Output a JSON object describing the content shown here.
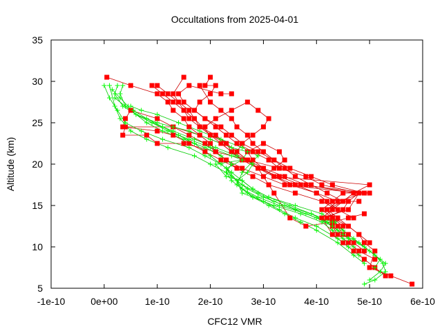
{
  "chart_data": {
    "type": "scatter",
    "title": "Occultations from 2025-04-01",
    "xlabel": "CFC12 VMR",
    "ylabel": "Altitude (km)",
    "xlim": [
      -1e-10,
      6e-10
    ],
    "ylim": [
      5,
      35
    ],
    "xticks": [
      -1e-10,
      0,
      1e-10,
      2e-10,
      3e-10,
      4e-10,
      5e-10,
      6e-10
    ],
    "xtick_labels": [
      "-1e-10",
      "0e+00",
      "1e-10",
      "2e-10",
      "3e-10",
      "4e-10",
      "5e-10",
      "6e-10"
    ],
    "yticks": [
      5,
      10,
      15,
      20,
      25,
      30,
      35
    ],
    "ytick_labels": [
      "5",
      "10",
      "15",
      "20",
      "25",
      "30",
      "35"
    ],
    "grid": false,
    "colors": {
      "series_a": "#ff0000",
      "series_b": "#00ff00",
      "line_a": "#cc0000",
      "line_b": "#00cc00"
    },
    "series": [
      {
        "marker": "square",
        "color": "#ff0000",
        "profiles": [
          {
            "x": [
              5.8e-10,
              5.4e-10,
              5e-10,
              5.1e-10,
              4.9e-10,
              4.8e-10,
              4.6e-10,
              4.3e-10,
              4.2e-10,
              4.4e-10,
              4e-10,
              3.6e-10,
              3.2e-10,
              2.9e-10,
              2.7e-10,
              2.4e-10,
              2.2e-10,
              2e-10,
              1.7e-10,
              1.5e-10,
              1.3e-10,
              1.1e-10,
              9e-11
            ],
            "y": [
              5.5,
              6.5,
              7.5,
              9.5,
              10.5,
              11.5,
              12.5,
              13.5,
              14.5,
              15.5,
              16.5,
              17.5,
              18.5,
              19.5,
              20.5,
              21.5,
              22.5,
              23.5,
              25.5,
              26.5,
              27.5,
              28.5,
              29.5
            ]
          },
          {
            "x": [
              5.3e-10,
              5.1e-10,
              4.9e-10,
              4.7e-10,
              4.5e-10,
              4.3e-10,
              4.1e-10,
              4.6e-10,
              4.8e-10,
              3.4e-10,
              3e-10,
              2.6e-10,
              2.3e-10,
              2.1e-10,
              2e-10,
              1.8e-10,
              1.6e-10,
              1.5e-10,
              1.3e-10,
              1.2e-10,
              1e-10,
              5e-11,
              5e-12
            ],
            "y": [
              6.5,
              7.5,
              8.5,
              9.5,
              10.5,
              11.5,
              13.5,
              14.5,
              16.5,
              17.5,
              18.5,
              19.5,
              20.5,
              21.5,
              22.5,
              23.5,
              24.5,
              25.5,
              26.5,
              27.5,
              28.5,
              29.5,
              30.5
            ]
          },
          {
            "x": [
              5.1e-10,
              4.8e-10,
              4.6e-10,
              4.4e-10,
              4.3e-10,
              4.1e-10,
              4.3e-10,
              4.5e-10,
              4.7e-10,
              5e-10,
              3.2e-10,
              2.9e-10,
              2.6e-10,
              2.4e-10,
              2.3e-10,
              2e-10,
              1.8e-10,
              1.7e-10,
              1.6e-10,
              1.4e-10,
              1.3e-10,
              1.5e-10
            ],
            "y": [
              8.5,
              9.5,
              10.5,
              11.5,
              12.5,
              13.5,
              14.5,
              15.5,
              16.5,
              17.5,
              18.5,
              19.5,
              20.5,
              21.5,
              22.5,
              23.5,
              24.5,
              25.5,
              26.5,
              27.5,
              28.5,
              30.5
            ]
          },
          {
            "x": [
              4.9e-10,
              4.7e-10,
              4.5e-10,
              4.4e-10,
              4.2e-10,
              4.5e-10,
              4.6e-10,
              4.8e-10,
              4.1e-10,
              3.8e-10,
              3.3e-10,
              3.1e-10,
              2.8e-10,
              2.5e-10,
              2.3e-10,
              2.1e-10,
              1.9e-10,
              1.7e-10,
              1.8e-10,
              2e-10,
              2.1e-10,
              1.9e-10,
              2e-10
            ],
            "y": [
              9.5,
              10.5,
              11.5,
              12.5,
              13.5,
              14.5,
              15.5,
              16.5,
              17.5,
              18.5,
              19.5,
              20.5,
              21.5,
              22.5,
              23.5,
              24.5,
              25.5,
              26.5,
              27.5,
              28.5,
              29.5,
              29.5,
              30.5
            ]
          },
          {
            "x": [
              5e-10,
              4.8e-10,
              4.6e-10,
              4.4e-10,
              4.2e-10,
              4.4e-10,
              4.9e-10,
              4.3e-10,
              3.9e-10,
              3.5e-10,
              3.2e-10,
              2.9e-10,
              2.6e-10,
              2.4e-10,
              2.2e-10,
              1.9e-10,
              1.7e-10,
              1.5e-10,
              1.4e-10,
              1.6e-10,
              2.2e-10,
              2.4e-10
            ],
            "y": [
              10.5,
              11.5,
              12.5,
              13.5,
              14.5,
              15.5,
              16.5,
              17.5,
              18.5,
              19.5,
              20.5,
              21.5,
              22.5,
              23.5,
              24.5,
              25.5,
              26.5,
              27.5,
              28.5,
              29.5,
              28.5,
              28.5
            ]
          },
          {
            "x": [
              4.6e-10,
              4.4e-10,
              4.2e-10,
              4.5e-10,
              4.7e-10,
              3.8e-10,
              3.4e-10,
              3e-10,
              2.7e-10,
              2.5e-10,
              2.6e-10,
              2.8e-10,
              3e-10,
              3.1e-10,
              2.9e-10,
              2.7e-10,
              2.4e-10,
              2.1e-10,
              1.9e-10
            ],
            "y": [
              11.5,
              12.5,
              14.5,
              15.5,
              16.5,
              17.5,
              18.5,
              19.5,
              20.5,
              21.5,
              22.5,
              23.5,
              24.5,
              25.5,
              26.5,
              27.5,
              26.5,
              25.5,
              24.5
            ]
          },
          {
            "x": [
              4.5e-10,
              4.3e-10,
              4.1e-10,
              4.3e-10,
              4.5e-10,
              5e-10,
              3.7e-10,
              3.3e-10,
              2.9e-10,
              2.6e-10,
              2.4e-10,
              2.2e-10,
              1.8e-10,
              1.3e-10,
              4e-11,
              3.5e-11,
              8e-11,
              1e-10,
              1.5e-10,
              2.1e-10,
              2.7e-10,
              3.3e-10
            ],
            "y": [
              12.5,
              13.5,
              14.5,
              15.5,
              16.5,
              16.5,
              17.5,
              18.5,
              19.5,
              20.5,
              21.5,
              22.5,
              23.5,
              24.5,
              24.5,
              23.5,
              23.5,
              22.5,
              22.5,
              21.5,
              20.5,
              19.5
            ]
          },
          {
            "x": [
              4.7e-10,
              4.4e-10,
              4.1e-10,
              3.6e-10,
              3.1e-10,
              2.8e-10,
              2.5e-10,
              2.3e-10,
              2.1e-10,
              1.9e-10,
              1.6e-10,
              1.3e-10,
              1e-10,
              5e-11,
              4e-11,
              3.5e-11,
              1e-10,
              1.3e-10,
              1.6e-10,
              1.9e-10,
              2.2e-10,
              2.5e-10
            ],
            "y": [
              13.5,
              14.5,
              15.5,
              16.5,
              17.5,
              18.5,
              19.5,
              20.5,
              21.5,
              22.5,
              23.5,
              24.5,
              25.5,
              26.5,
              25.5,
              24.5,
              24.0,
              23.5,
              22.5,
              21.5,
              20.5,
              19.5
            ]
          },
          {
            "x": [
              4.4e-10,
              4.2e-10,
              4e-10,
              3.5e-10,
              3.2e-10,
              3e-10,
              2.8e-10,
              2.7e-10,
              3e-10,
              3.3e-10,
              3.4e-10,
              3.2e-10,
              3e-10
            ],
            "y": [
              14.5,
              15.5,
              16.5,
              17.5,
              18.5,
              19.5,
              20.5,
              21.5,
              22.5,
              21.5,
              20.5,
              19.5,
              18.5
            ]
          },
          {
            "x": [
              4.8e-10,
              4.5e-10,
              4.2e-10,
              3.9e-10,
              3.6e-10,
              3.4e-10,
              3.2e-10,
              3e-10,
              2.8e-10,
              2.7e-10,
              2.5e-10,
              2.4e-10,
              2.2e-10,
              2e-10,
              1.8e-10
            ],
            "y": [
              15.5,
              15.5,
              16.5,
              17.5,
              18.5,
              19.5,
              20.5,
              21.5,
              22.5,
              23.5,
              24.5,
              25.5,
              26.5,
              27.5,
              29.5
            ]
          },
          {
            "x": [
              4.9e-10,
              4.6e-10,
              4.3e-10,
              3.8e-10,
              3.5e-10,
              3.2e-10,
              2.9e-10,
              2.7e-10,
              2.5e-10,
              2.3e-10,
              2.1e-10,
              1.8e-10,
              1.6e-10,
              1.4e-10,
              1.2e-10,
              1e-10
            ],
            "y": [
              14.0,
              13.5,
              13.0,
              12.5,
              13.5,
              16.5,
              19.5,
              20.5,
              21.5,
              22.5,
              23.5,
              24.5,
              25.5,
              27.5,
              28.5,
              29.5
            ]
          }
        ]
      },
      {
        "marker": "plus",
        "color": "#00ff00",
        "profiles": [
          {
            "x": [
              4.9e-10,
              5.1e-10,
              5.3e-10,
              5.25e-10,
              5.1e-10,
              4.9e-10,
              4.7e-10,
              4.5e-10,
              4.35e-10,
              4.1e-10,
              3.6e-10,
              3.1e-10,
              2.8e-10,
              2.6e-10,
              2.4e-10,
              2.2e-10,
              1.9e-10,
              1.6e-10,
              1.1e-10,
              7e-11,
              4e-11,
              2.5e-11,
              1e-11,
              0.0
            ],
            "y": [
              5.5,
              6.0,
              7.0,
              8.0,
              9.0,
              10.0,
              11.0,
              12.0,
              13.0,
              14.0,
              15.0,
              16.0,
              17.0,
              18.0,
              19.0,
              20.0,
              21.0,
              22.0,
              23.0,
              24.0,
              25.0,
              26.5,
              28.0,
              29.5
            ]
          },
          {
            "x": [
              5e-10,
              5.2e-10,
              5.3e-10,
              5.1e-10,
              4.9e-10,
              4.6e-10,
              4.4e-10,
              4.2e-10,
              3.9e-10,
              3.4e-10,
              3e-10,
              2.7e-10,
              2.5e-10,
              2.3e-10,
              2e-10,
              1.7e-10,
              1.2e-10,
              8e-11,
              5e-11,
              3e-11,
              2e-11,
              1e-11
            ],
            "y": [
              6.0,
              7.0,
              8.0,
              9.0,
              10.0,
              11.0,
              12.0,
              13.0,
              14.0,
              15.0,
              16.0,
              17.0,
              18.0,
              19.0,
              20.0,
              21.0,
              22.0,
              23.0,
              24.0,
              25.5,
              27.0,
              29.5
            ]
          },
          {
            "x": [
              5.1e-10,
              5.2e-10,
              5e-10,
              4.8e-10,
              4.5e-10,
              4.3e-10,
              4e-10,
              3.6e-10,
              3.2e-10,
              2.9e-10,
              2.6e-10,
              2.4e-10,
              2.3e-10,
              2.6e-10,
              2.4e-10,
              2e-10,
              1.6e-10,
              1.2e-10,
              9e-11,
              6e-11,
              3.5e-11,
              2e-11,
              2.5e-11
            ],
            "y": [
              7.5,
              8.5,
              9.5,
              10.5,
              11.5,
              12.5,
              13.5,
              14.5,
              15.5,
              16.5,
              17.5,
              18.5,
              19.5,
              20.5,
              21.0,
              22.0,
              23.0,
              24.0,
              25.0,
              26.0,
              27.0,
              28.5,
              29.5
            ]
          },
          {
            "x": [
              4.7e-10,
              4.5e-10,
              4.3e-10,
              4.1e-10,
              3.7e-10,
              3.2e-10,
              2.8e-10,
              2.6e-10,
              2.5e-10,
              2.7e-10,
              2.8e-10,
              2.5e-10,
              2.1e-10,
              1.7e-10,
              1.3e-10,
              9e-11,
              6e-11,
              4e-11,
              3e-11,
              3.5e-11
            ],
            "y": [
              10.0,
              11.0,
              12.0,
              13.0,
              14.0,
              15.0,
              16.0,
              17.0,
              18.0,
              19.0,
              20.0,
              21.0,
              22.0,
              23.0,
              24.0,
              25.0,
              26.0,
              27.0,
              28.5,
              29.5
            ]
          },
          {
            "x": [
              4.6e-10,
              4.4e-10,
              4.2e-10,
              3.8e-10,
              3.3e-10,
              2.9e-10,
              2.6e-10,
              2.4e-10,
              2.3e-10,
              2.4e-10,
              2.2e-10,
              1.9e-10,
              1.5e-10,
              1.1e-10,
              8e-11,
              6e-11,
              4.5e-11,
              3e-11,
              1.5e-11
            ],
            "y": [
              11.0,
              12.0,
              13.0,
              14.0,
              15.0,
              16.0,
              17.0,
              18.0,
              19.0,
              20.0,
              21.0,
              22.0,
              23.0,
              24.0,
              25.0,
              26.0,
              27.0,
              28.0,
              29.0
            ]
          },
          {
            "x": [
              4.5e-10,
              4.3e-10,
              3.9e-10,
              3.5e-10,
              3.1e-10,
              2.8e-10,
              2.6e-10,
              2.3e-10,
              2.1e-10,
              2.6e-10,
              2.7e-10,
              2.4e-10,
              2e-10,
              1.6e-10,
              1.3e-10,
              1e-10,
              6e-11,
              4e-11,
              2e-11
            ],
            "y": [
              12.0,
              13.0,
              14.0,
              15.0,
              16.0,
              17.0,
              18.0,
              18.5,
              20.0,
              20.5,
              21.5,
              22.0,
              23.0,
              24.0,
              24.5,
              25.0,
              26.0,
              27.0,
              28.0
            ]
          },
          {
            "x": [
              4.8e-10,
              4.6e-10,
              4.4e-10,
              4e-10,
              3.6e-10,
              3.3e-10,
              3e-10,
              2.7e-10,
              2.5e-10,
              2.6e-10,
              2.9e-10,
              2.6e-10,
              2.2e-10,
              1.8e-10,
              1.4e-10,
              1e-10,
              7e-11,
              5e-11
            ],
            "y": [
              9.0,
              10.0,
              11.0,
              12.5,
              13.5,
              14.5,
              15.5,
              16.5,
              17.5,
              19.0,
              21.0,
              22.0,
              23.0,
              24.0,
              25.0,
              26.0,
              26.5,
              27.0
            ]
          },
          {
            "x": [
              4.9e-10,
              4.7e-10,
              4.4e-10,
              4e-10,
              3.7e-10,
              3.4e-10,
              3.1e-10,
              2.8e-10,
              2.6e-10,
              2.5e-10,
              2.3e-10,
              2e-10,
              1.7e-10,
              1.4e-10,
              1.1e-10,
              8e-11,
              5.5e-11
            ],
            "y": [
              8.0,
              9.0,
              10.5,
              12.0,
              13.0,
              14.0,
              15.0,
              16.0,
              16.5,
              18.0,
              19.5,
              21.0,
              22.5,
              23.5,
              24.5,
              25.5,
              26.5
            ]
          }
        ]
      }
    ]
  }
}
